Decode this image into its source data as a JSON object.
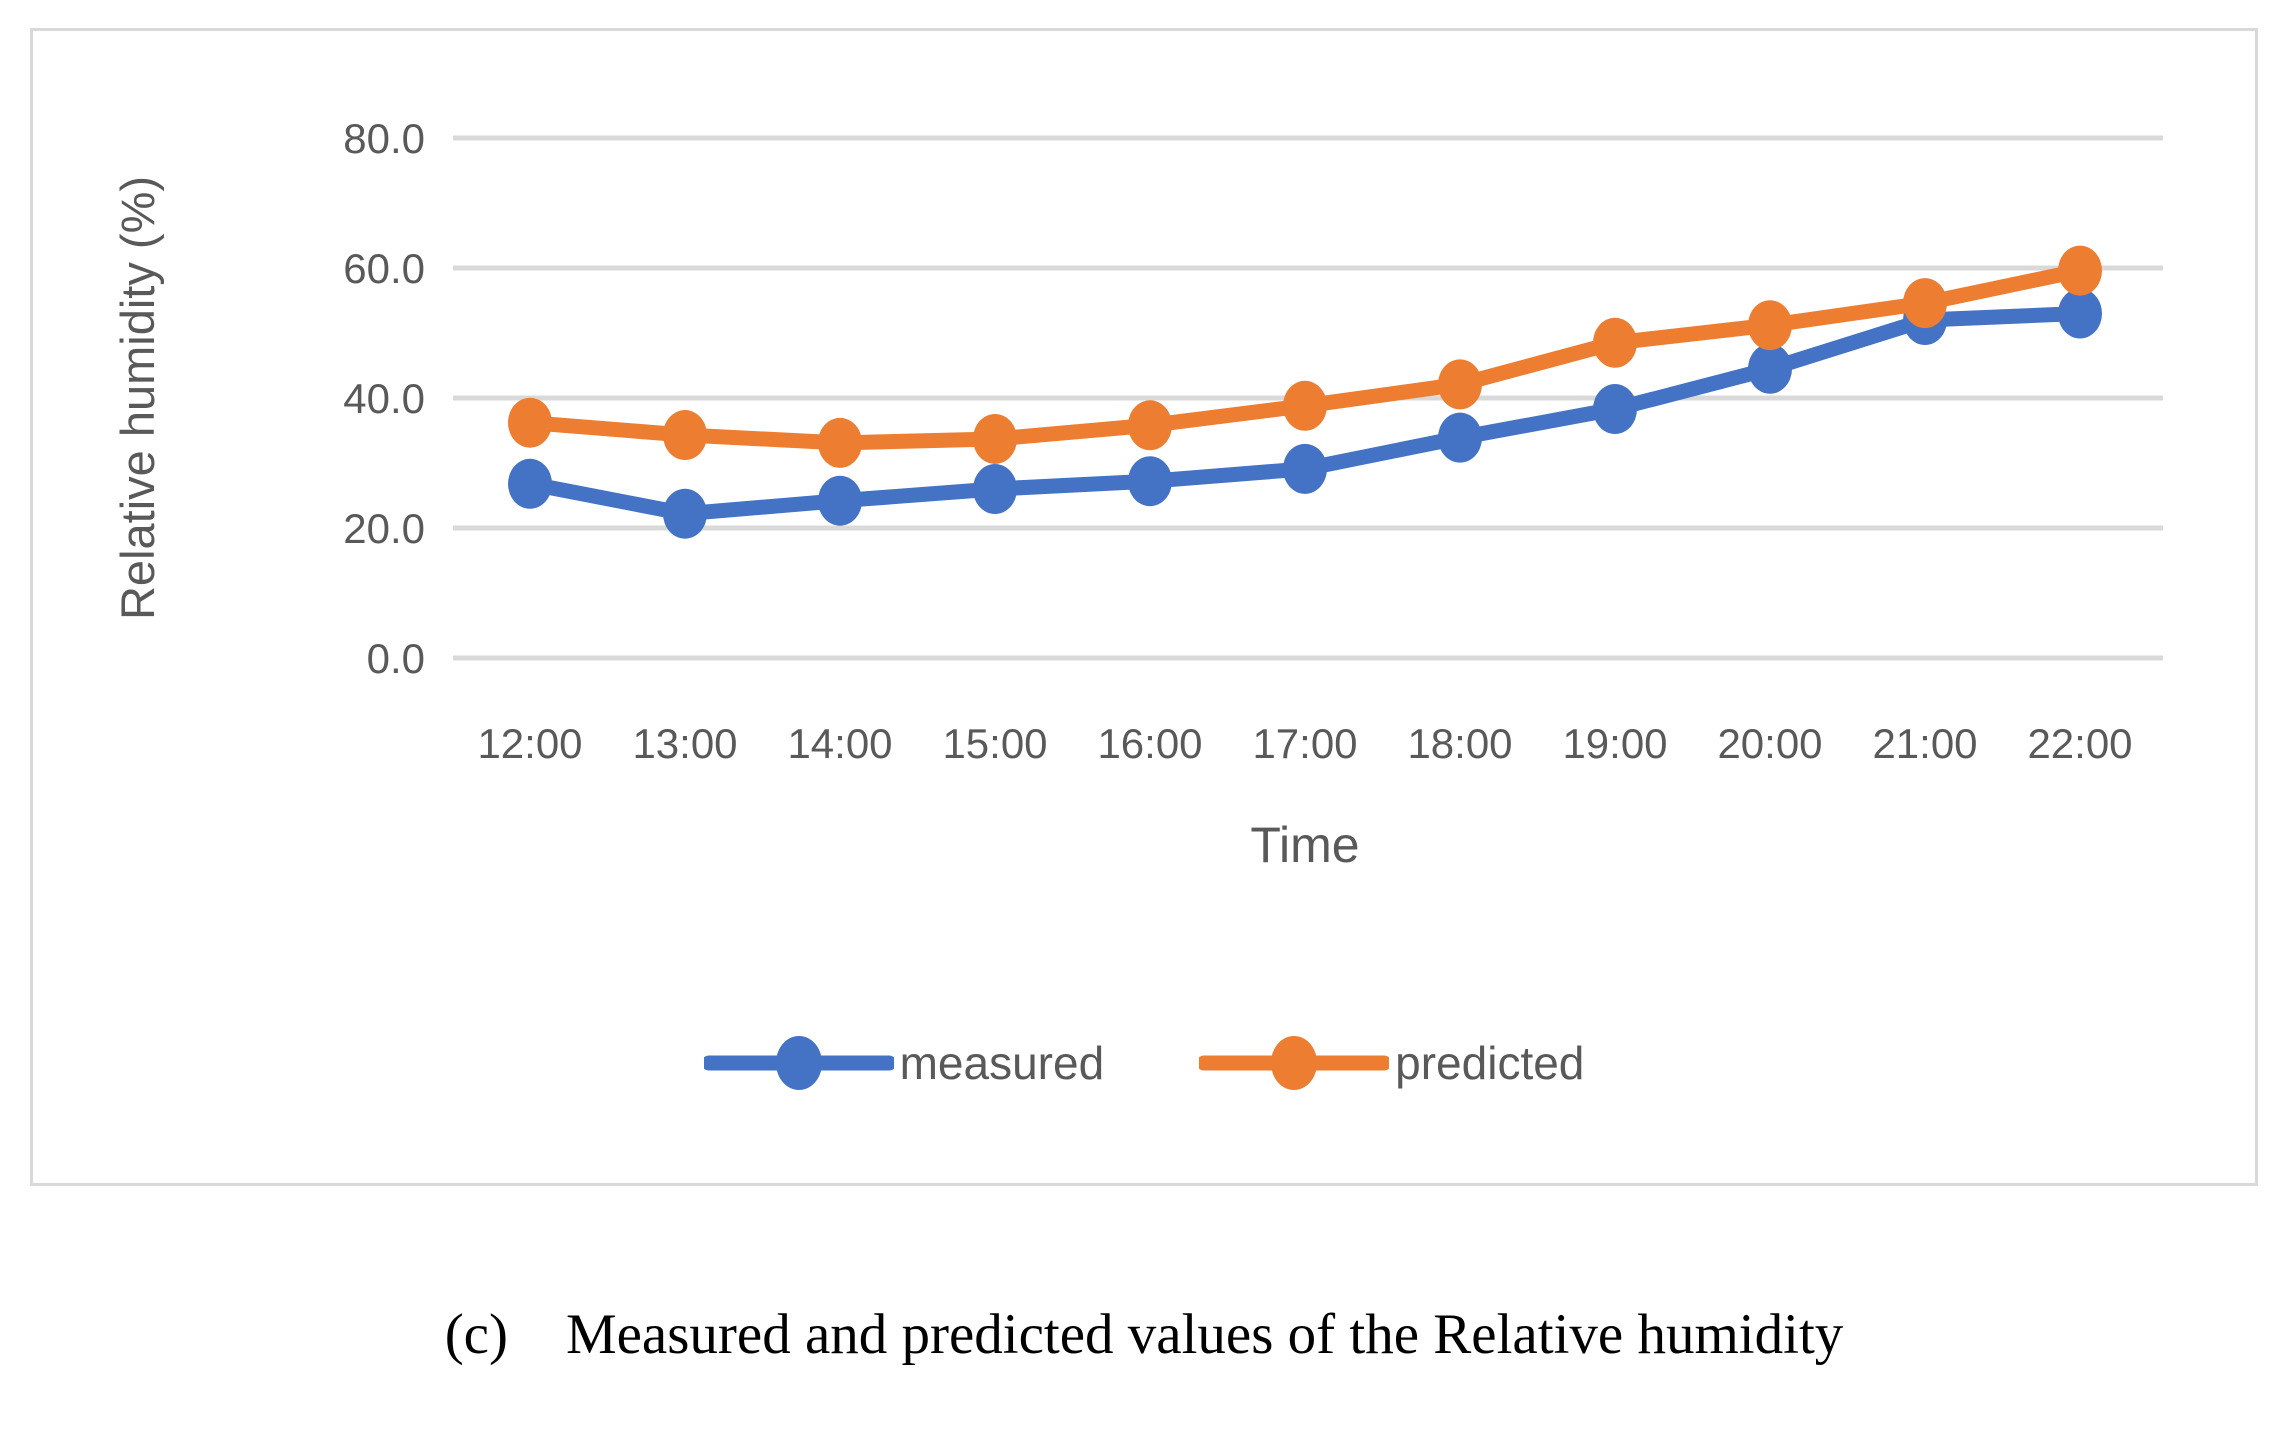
{
  "figure": {
    "caption_label": "(c)",
    "caption_text": "Measured and predicted values of the Relative humidity"
  },
  "chart_data": {
    "type": "line",
    "title": "",
    "xlabel": "Time",
    "ylabel": "Relative humidity (%)",
    "x_categories": [
      "12:00",
      "13:00",
      "14:00",
      "15:00",
      "16:00",
      "17:00",
      "18:00",
      "19:00",
      "20:00",
      "21:00",
      "22:00"
    ],
    "y_ticks": [
      {
        "value": 0,
        "label": "0.0"
      },
      {
        "value": 20,
        "label": "20.0"
      },
      {
        "value": 40,
        "label": "40.0"
      },
      {
        "value": 60,
        "label": "60.0"
      },
      {
        "value": 80,
        "label": "80.0"
      }
    ],
    "ylim": [
      0,
      80
    ],
    "grid": "horizontal-only",
    "legend_position": "bottom",
    "marker": "filled-ellipse",
    "series": [
      {
        "name": "measured",
        "color": "#4472C4",
        "values": [
          26.8,
          22.2,
          24.2,
          26.0,
          27.2,
          29.1,
          33.9,
          38.3,
          44.5,
          52.0,
          53.0
        ]
      },
      {
        "name": "predicted",
        "color": "#ED7D31",
        "values": [
          36.2,
          34.3,
          33.1,
          33.7,
          35.8,
          38.8,
          42.1,
          48.5,
          51.2,
          54.6,
          59.6
        ]
      }
    ]
  },
  "theme": {
    "grid_color": "#d9d9d9",
    "axis_text_color": "#595959",
    "frame_border_color": "#d9d9d9",
    "background": "#ffffff"
  }
}
